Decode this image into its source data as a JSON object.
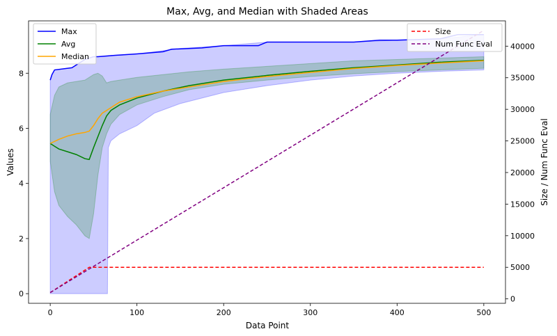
{
  "chart_data": {
    "type": "line",
    "title": "Max, Avg, and Median with Shaded Areas",
    "xlabel": "Data Point",
    "ylabel": "Values",
    "y2label": "Size / Num Func Eval",
    "xlim": [
      -25,
      525
    ],
    "ylim": [
      -0.35,
      9.9
    ],
    "y2lim": [
      -700,
      44000
    ],
    "xticks": [
      0,
      100,
      200,
      300,
      400,
      500
    ],
    "yticks": [
      0,
      2,
      4,
      6,
      8
    ],
    "y2ticks": [
      0,
      5000,
      10000,
      15000,
      20000,
      25000,
      30000,
      35000,
      40000
    ],
    "legend_left": {
      "position": "top-left",
      "entries": [
        "Max",
        "Avg",
        "Median"
      ]
    },
    "legend_right": {
      "position": "top-right",
      "entries": [
        "Size",
        "Num Func Eval"
      ]
    },
    "colors": {
      "max": "#0000ff",
      "avg": "#008000",
      "median": "#ffa500",
      "size": "#ff0000",
      "nfe": "#800080",
      "max_band": "#0000ff",
      "avg_band": "#008000"
    },
    "series": [
      {
        "name": "Max",
        "axis": "left",
        "style": "solid",
        "x": [
          0,
          2,
          5,
          25,
          40,
          50,
          55,
          75,
          100,
          130,
          140,
          175,
          200,
          240,
          250,
          300,
          350,
          380,
          400,
          450,
          470,
          500
        ],
        "y": [
          7.75,
          7.95,
          8.12,
          8.2,
          8.5,
          8.6,
          8.6,
          8.65,
          8.7,
          8.78,
          8.87,
          8.92,
          9.0,
          9.0,
          9.13,
          9.13,
          9.13,
          9.2,
          9.2,
          9.25,
          9.4,
          9.4
        ]
      },
      {
        "name": "Avg",
        "axis": "left",
        "style": "solid",
        "x": [
          0,
          5,
          10,
          20,
          30,
          40,
          45,
          50,
          60,
          65,
          70,
          80,
          100,
          130,
          160,
          200,
          250,
          300,
          350,
          400,
          450,
          500
        ],
        "y": [
          5.45,
          5.35,
          5.25,
          5.15,
          5.05,
          4.9,
          4.87,
          5.3,
          6.1,
          6.45,
          6.65,
          6.85,
          7.1,
          7.35,
          7.55,
          7.75,
          7.92,
          8.07,
          8.2,
          8.3,
          8.4,
          8.47
        ]
      },
      {
        "name": "Median",
        "axis": "left",
        "style": "solid",
        "x": [
          0,
          10,
          20,
          30,
          40,
          45,
          50,
          55,
          60,
          65,
          70,
          80,
          100,
          130,
          160,
          200,
          250,
          300,
          350,
          400,
          450,
          500
        ],
        "y": [
          5.45,
          5.6,
          5.72,
          5.8,
          5.85,
          5.9,
          6.1,
          6.35,
          6.55,
          6.65,
          6.75,
          6.95,
          7.15,
          7.35,
          7.5,
          7.7,
          7.88,
          8.03,
          8.17,
          8.28,
          8.37,
          8.45
        ]
      },
      {
        "name": "Size",
        "axis": "right",
        "style": "dashed",
        "x": [
          0,
          45,
          500
        ],
        "y": [
          1000,
          5000,
          5000
        ]
      },
      {
        "name": "Num Func Eval",
        "axis": "right",
        "style": "dashed",
        "x": [
          0,
          500
        ],
        "y": [
          1000,
          42500
        ]
      }
    ],
    "bands": [
      {
        "name": "max_band",
        "x": [
          0,
          2,
          5,
          25,
          40,
          50,
          55,
          65,
          66,
          67,
          70,
          80,
          100,
          120,
          150,
          200,
          250,
          300,
          350,
          400,
          450,
          500
        ],
        "upper": [
          7.75,
          7.95,
          8.12,
          8.2,
          8.5,
          8.6,
          8.6,
          8.62,
          8.62,
          8.62,
          8.65,
          8.65,
          8.7,
          8.78,
          8.9,
          9.0,
          9.13,
          9.13,
          9.13,
          9.2,
          9.25,
          9.4
        ],
        "lower": [
          0,
          0,
          0,
          0,
          0,
          0,
          0,
          0,
          0,
          5.3,
          5.55,
          5.8,
          6.1,
          6.55,
          6.9,
          7.3,
          7.55,
          7.75,
          7.9,
          8.0,
          8.07,
          8.12
        ]
      },
      {
        "name": "avg_band",
        "x": [
          0,
          5,
          10,
          20,
          30,
          40,
          45,
          50,
          55,
          60,
          65,
          70,
          80,
          100,
          130,
          160,
          200,
          250,
          300,
          350,
          400,
          450,
          500
        ],
        "upper": [
          6.5,
          7.2,
          7.5,
          7.65,
          7.7,
          7.75,
          7.85,
          7.95,
          8.0,
          7.9,
          7.65,
          7.7,
          7.75,
          7.85,
          7.95,
          8.05,
          8.15,
          8.25,
          8.35,
          8.45,
          8.5,
          8.55,
          8.6
        ],
        "lower": [
          4.8,
          3.7,
          3.2,
          2.8,
          2.5,
          2.1,
          2.0,
          2.9,
          4.3,
          5.3,
          5.8,
          6.15,
          6.5,
          6.85,
          7.15,
          7.4,
          7.6,
          7.75,
          7.88,
          7.98,
          8.06,
          8.12,
          8.18
        ]
      }
    ]
  }
}
